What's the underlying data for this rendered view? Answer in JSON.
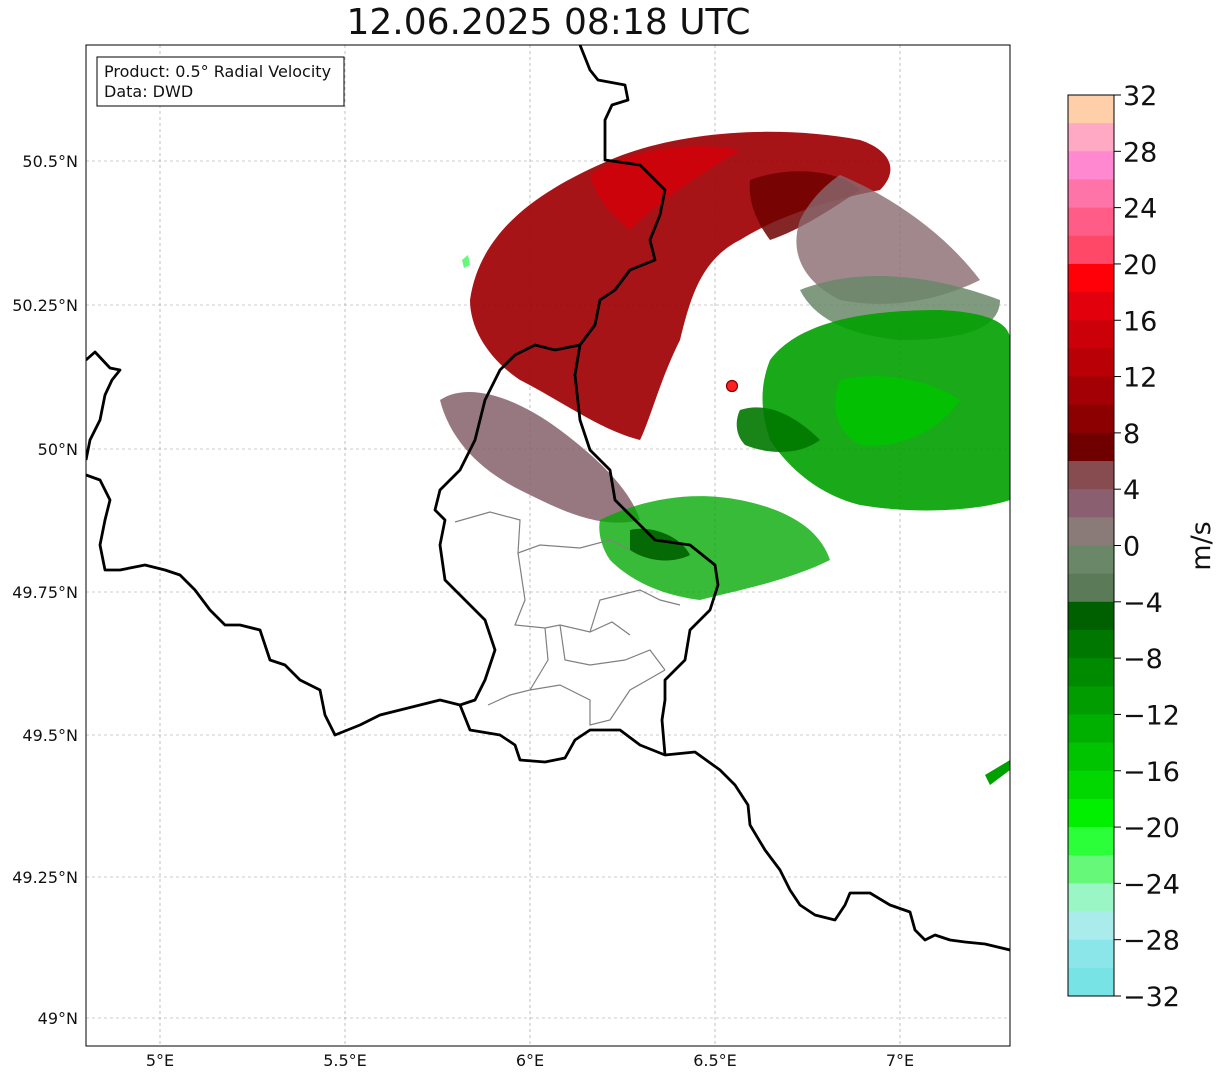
{
  "title": "12.06.2025 08:18 UTC",
  "info_box": {
    "line1": "Product: 0.5° Radial Velocity",
    "line2": "Data: DWD"
  },
  "y_ticks": [
    "50.5°N",
    "50.25°N",
    "50°N",
    "49.75°N",
    "49.5°N",
    "49.25°N",
    "49°N"
  ],
  "x_ticks": [
    "5°E",
    "5.5°E",
    "6°E",
    "6.5°E",
    "7°E"
  ],
  "colorbar": {
    "label": "m/s",
    "range": [
      -32,
      32
    ],
    "ticks": [
      "32",
      "28",
      "24",
      "20",
      "16",
      "12",
      "8",
      "4",
      "0",
      "−4",
      "−8",
      "−12",
      "−16",
      "−20",
      "−24",
      "−28",
      "−32"
    ],
    "colors_top_to_bottom": [
      "#ffcfaa",
      "#ffa9c4",
      "#ff88d0",
      "#ff74a8",
      "#ff5c88",
      "#ff4868",
      "#ff0008",
      "#e2000c",
      "#cc0008",
      "#b80006",
      "#a20004",
      "#8c0002",
      "#700000",
      "#864c50",
      "#8a6070",
      "#8a7a78",
      "#6a8868",
      "#5a7a58",
      "#006000",
      "#007800",
      "#008a00",
      "#009c00",
      "#00b000",
      "#00c400",
      "#00d800",
      "#00f000",
      "#2aff3a",
      "#66f878",
      "#9af6c4",
      "#aaecec",
      "#8ae6e8",
      "#77e3e5"
    ]
  },
  "radar_site": {
    "color": "#ff2020"
  }
}
